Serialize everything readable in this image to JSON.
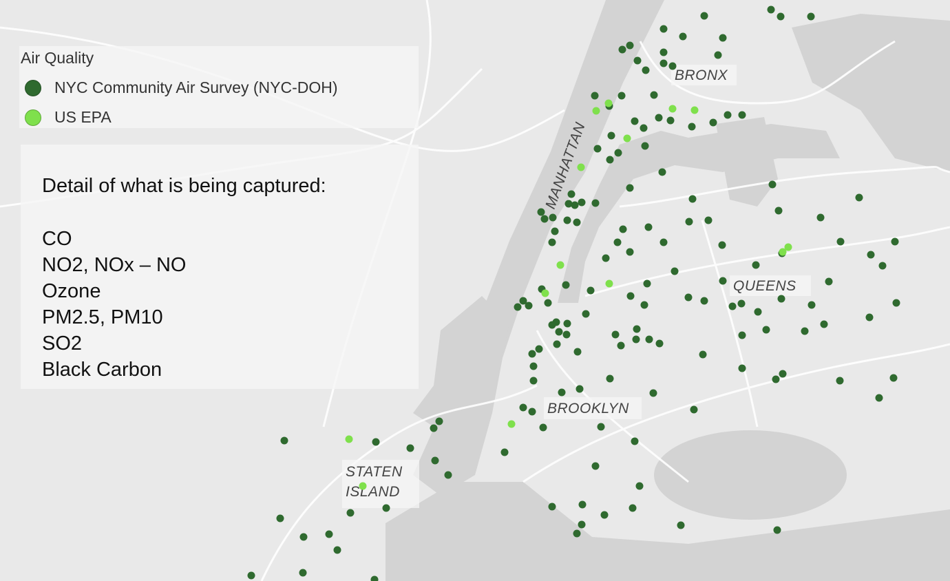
{
  "legend": {
    "title": "Air Quality",
    "items": [
      {
        "label": "NYC Community Air Survey (NYC-DOH)",
        "color": "#2f6a2f"
      },
      {
        "label": "US EPA",
        "color": "#7fe04c"
      }
    ]
  },
  "detail": {
    "heading": "Detail of what is being captured:",
    "items": [
      "CO",
      "NO2, NOx – NO",
      "Ozone",
      "PM2.5, PM10",
      "SO2",
      "Black Carbon"
    ]
  },
  "places": {
    "bronx": "BRONX",
    "manhattan": "MANHATTAN",
    "queens": "QUEENS",
    "brooklyn": "BROOKLYN",
    "staten_island": [
      "STATEN",
      "ISLAND"
    ]
  }
}
